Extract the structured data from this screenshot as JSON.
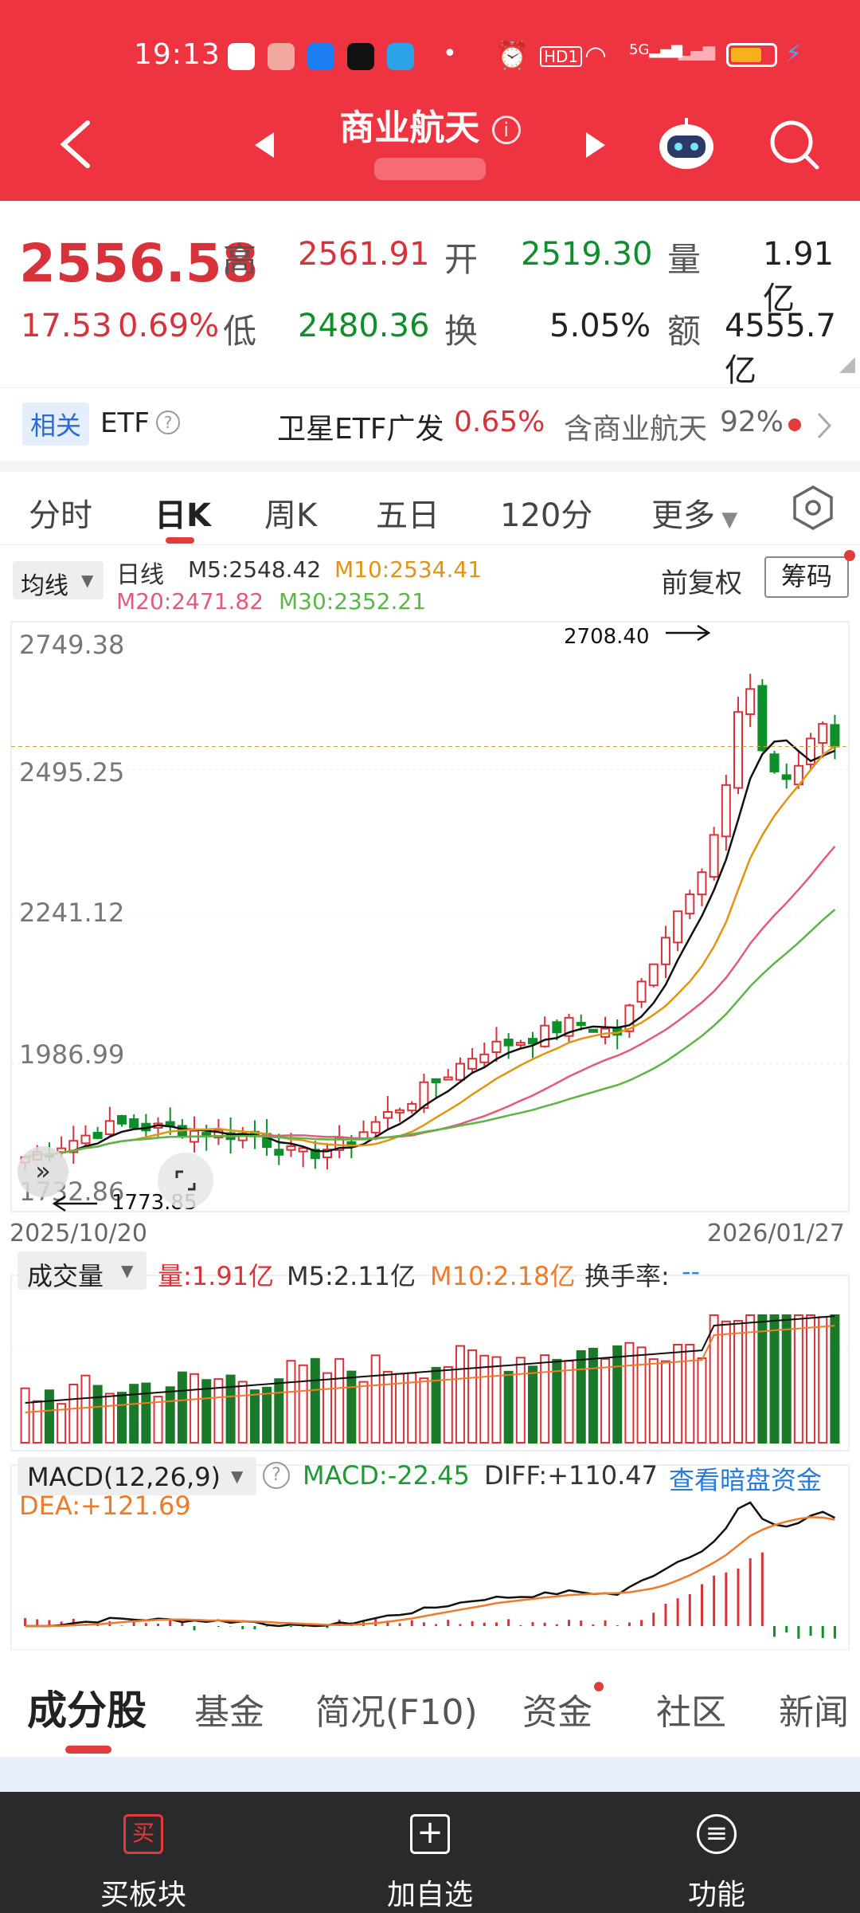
{
  "status": {
    "time": "19:13",
    "hd_badge": "HD1",
    "net": "5G"
  },
  "nav": {
    "title": "商业航天"
  },
  "quote": {
    "price": "2556.58",
    "change": "17.53",
    "change_pct": "0.69%",
    "high_label": "高",
    "high": "2561.91",
    "open_label": "开",
    "open": "2519.30",
    "vol_label": "量",
    "vol": "1.91亿",
    "low_label": "低",
    "low": "2480.36",
    "turnover_label": "换",
    "turnover": "5.05%",
    "amount_label": "额",
    "amount": "4555.7亿"
  },
  "etf": {
    "tag": "相关",
    "label": "ETF",
    "name": "卫星ETF广发",
    "pct": "0.65%",
    "contains": "含商业航天",
    "contains_pct": "92%"
  },
  "tabs": [
    "分时",
    "日K",
    "周K",
    "五日",
    "120分",
    "更多"
  ],
  "kline": {
    "indicator_select": "均线",
    "period": "日线",
    "m5": "M5:2548.42",
    "m10": "M10:2534.41",
    "m20": "M20:2471.82",
    "m30": "M30:2352.21",
    "adjust": "前复权",
    "chips_button": "筹码",
    "y_ticks": [
      "2749.38",
      "2495.25",
      "2241.12",
      "1986.99",
      "1732.86"
    ],
    "max_label": "2708.40",
    "min_label": "1773.85",
    "date_start": "2025/10/20",
    "date_end": "2026/01/27"
  },
  "volume": {
    "select": "成交量",
    "vol": "量:1.91亿",
    "m5": "M5:2.11亿",
    "m10": "M10:2.18亿",
    "turnover_label": "换手率:",
    "turnover_val": "--"
  },
  "macd": {
    "select": "MACD(12,26,9)",
    "macd": "MACD:-22.45",
    "diff": "DIFF:+110.47",
    "dea": "DEA:+121.69",
    "link": "查看暗盘资金"
  },
  "bottom_tabs": [
    "成分股",
    "基金",
    "简况(F10)",
    "资金",
    "社区",
    "新闻"
  ],
  "bottom_bar": [
    {
      "label": "买板块",
      "icon": "buy-icon",
      "glyph": "买"
    },
    {
      "label": "加自选",
      "icon": "add-watchlist-icon",
      "glyph": "+"
    },
    {
      "label": "功能",
      "icon": "menu-icon",
      "glyph": "≡"
    }
  ],
  "colors": {
    "header": "#ee3440",
    "up": "#d8323a",
    "down": "#0d8f2a",
    "m5": "#111111",
    "m10": "#e29412",
    "m20": "#e35b7a",
    "m30": "#5cb546"
  }
}
